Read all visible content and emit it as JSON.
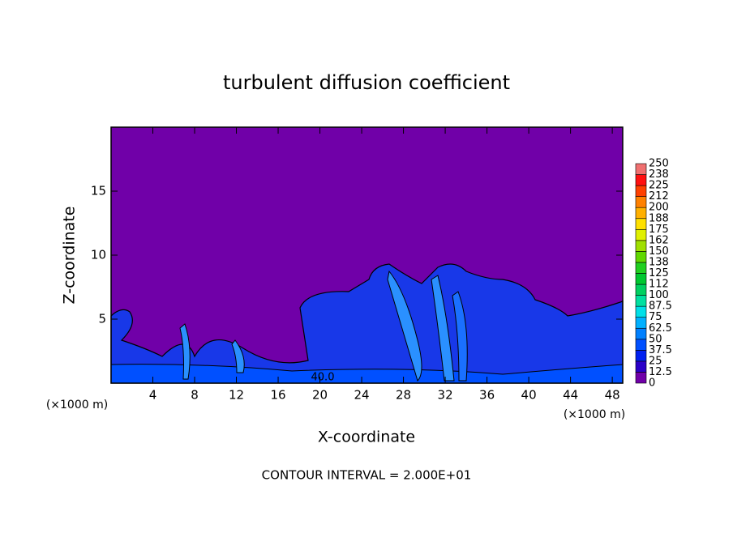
{
  "chart_data": {
    "type": "contour",
    "title": "turbulent diffusion coefficient",
    "xlabel": "X-coordinate",
    "ylabel": "Z-coordinate",
    "x_unit_left": "(×1000 m)",
    "x_unit_right": "(×1000 m)",
    "footer": "CONTOUR INTERVAL = 2.000E+01",
    "contour_label": "40.0",
    "xlim": [
      0,
      49
    ],
    "ylim": [
      0,
      20
    ],
    "xticks": [
      4,
      8,
      12,
      16,
      20,
      24,
      28,
      32,
      36,
      40,
      44,
      48
    ],
    "yticks": [
      5,
      10,
      15
    ],
    "levels": [
      0,
      12.5,
      25,
      37.5,
      50,
      62.5,
      75,
      87.5,
      100,
      {
        "value": 112.5,
        "label": "112"
      },
      125,
      {
        "value": 137.5,
        "label": "138"
      },
      150,
      {
        "value": 162.5,
        "label": "162"
      },
      175,
      {
        "value": 187.5,
        "label": "188"
      },
      200,
      {
        "value": 212.5,
        "label": "212"
      },
      225,
      {
        "value": 237.5,
        "label": "238"
      },
      250
    ],
    "colors": [
      "#7000a8",
      "#2a00c8",
      "#0020f0",
      "#0050ff",
      "#0080ff",
      "#00b0ff",
      "#00e0e8",
      "#00e0a0",
      "#00d060",
      "#00c830",
      "#20d020",
      "#60d800",
      "#a0e000",
      "#e0f000",
      "#ffe000",
      "#ffb000",
      "#ff8000",
      "#ff4000",
      "#ff1010",
      "#f07070"
    ]
  }
}
